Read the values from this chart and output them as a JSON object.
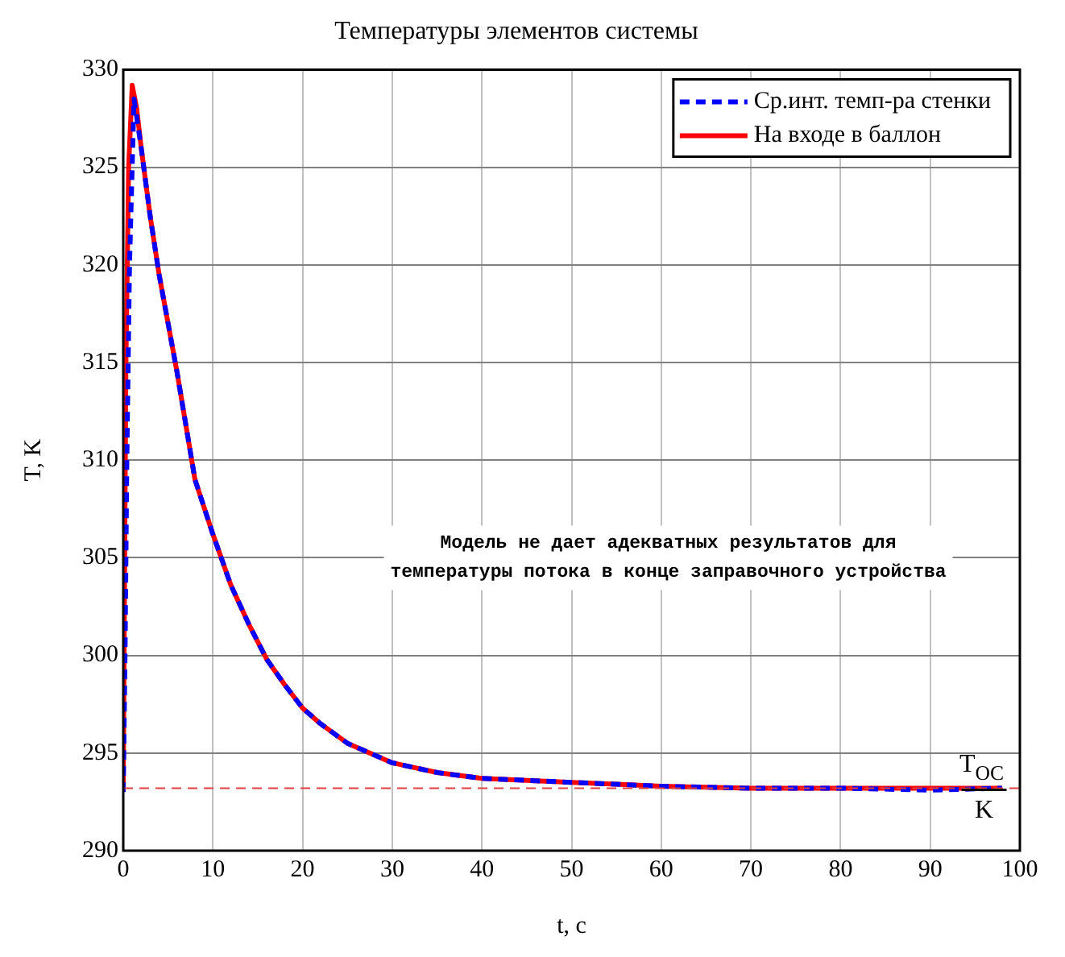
{
  "chart_data": {
    "type": "line",
    "title": "Температуры элементов системы",
    "xlabel": "t, c",
    "ylabel": "T, K",
    "xlim": [
      0,
      100
    ],
    "ylim": [
      290,
      330
    ],
    "xticks": [
      0,
      10,
      20,
      30,
      40,
      50,
      60,
      70,
      80,
      90,
      100
    ],
    "yticks": [
      290,
      295,
      300,
      305,
      310,
      315,
      320,
      325,
      330
    ],
    "grid": true,
    "legend": "top right",
    "marker": "none",
    "series": [
      {
        "name": "Ср.инт. темп-ра стенки",
        "color": "#0000ff",
        "line_style": "dashed",
        "x": [
          0,
          0.2,
          0.4,
          0.7,
          1.2,
          2,
          3,
          4,
          5,
          6,
          8,
          10,
          12,
          14,
          16,
          18,
          20,
          22,
          25,
          28,
          30,
          35,
          40,
          45,
          50,
          55,
          60,
          70,
          80,
          90,
          98
        ],
        "values": [
          293,
          300,
          310,
          320,
          328.5,
          326,
          322.5,
          319.5,
          317,
          314.5,
          309,
          306.2,
          303.6,
          301.6,
          299.8,
          298.5,
          297.3,
          296.5,
          295.5,
          294.9,
          294.5,
          294,
          293.7,
          293.6,
          293.5,
          293.4,
          293.3,
          293.2,
          293.2,
          293.1,
          293.2
        ]
      },
      {
        "name": "На входе в баллон",
        "color": "#ff0000",
        "line_style": "solid",
        "x": [
          0,
          0.3,
          0.6,
          1,
          1.5,
          2,
          3,
          4,
          5,
          6,
          8,
          10,
          12,
          14,
          16,
          18,
          20,
          22,
          25,
          28,
          30,
          35,
          40,
          45,
          50,
          55,
          60,
          70,
          80,
          90,
          98
        ],
        "values": [
          293.2,
          315,
          325,
          329.2,
          328,
          326,
          322.5,
          319.5,
          317,
          314.5,
          309,
          306.2,
          303.6,
          301.6,
          299.8,
          298.5,
          297.3,
          296.5,
          295.5,
          294.9,
          294.5,
          294,
          293.7,
          293.6,
          293.5,
          293.4,
          293.3,
          293.2,
          293.2,
          293.2,
          293.2
        ]
      }
    ],
    "ref_lines": [
      {
        "axis": "y",
        "value": 293.2,
        "label": "T$_{OC}$",
        "color": "#e04040",
        "line_style": "dashed"
      }
    ],
    "annotations": [
      "Модель не дает адекватных результатов для\nтемпературы потока в конце заправочного устройства",
      {
        "text": "K",
        "x": 96,
        "y": 293.2
      }
    ]
  }
}
